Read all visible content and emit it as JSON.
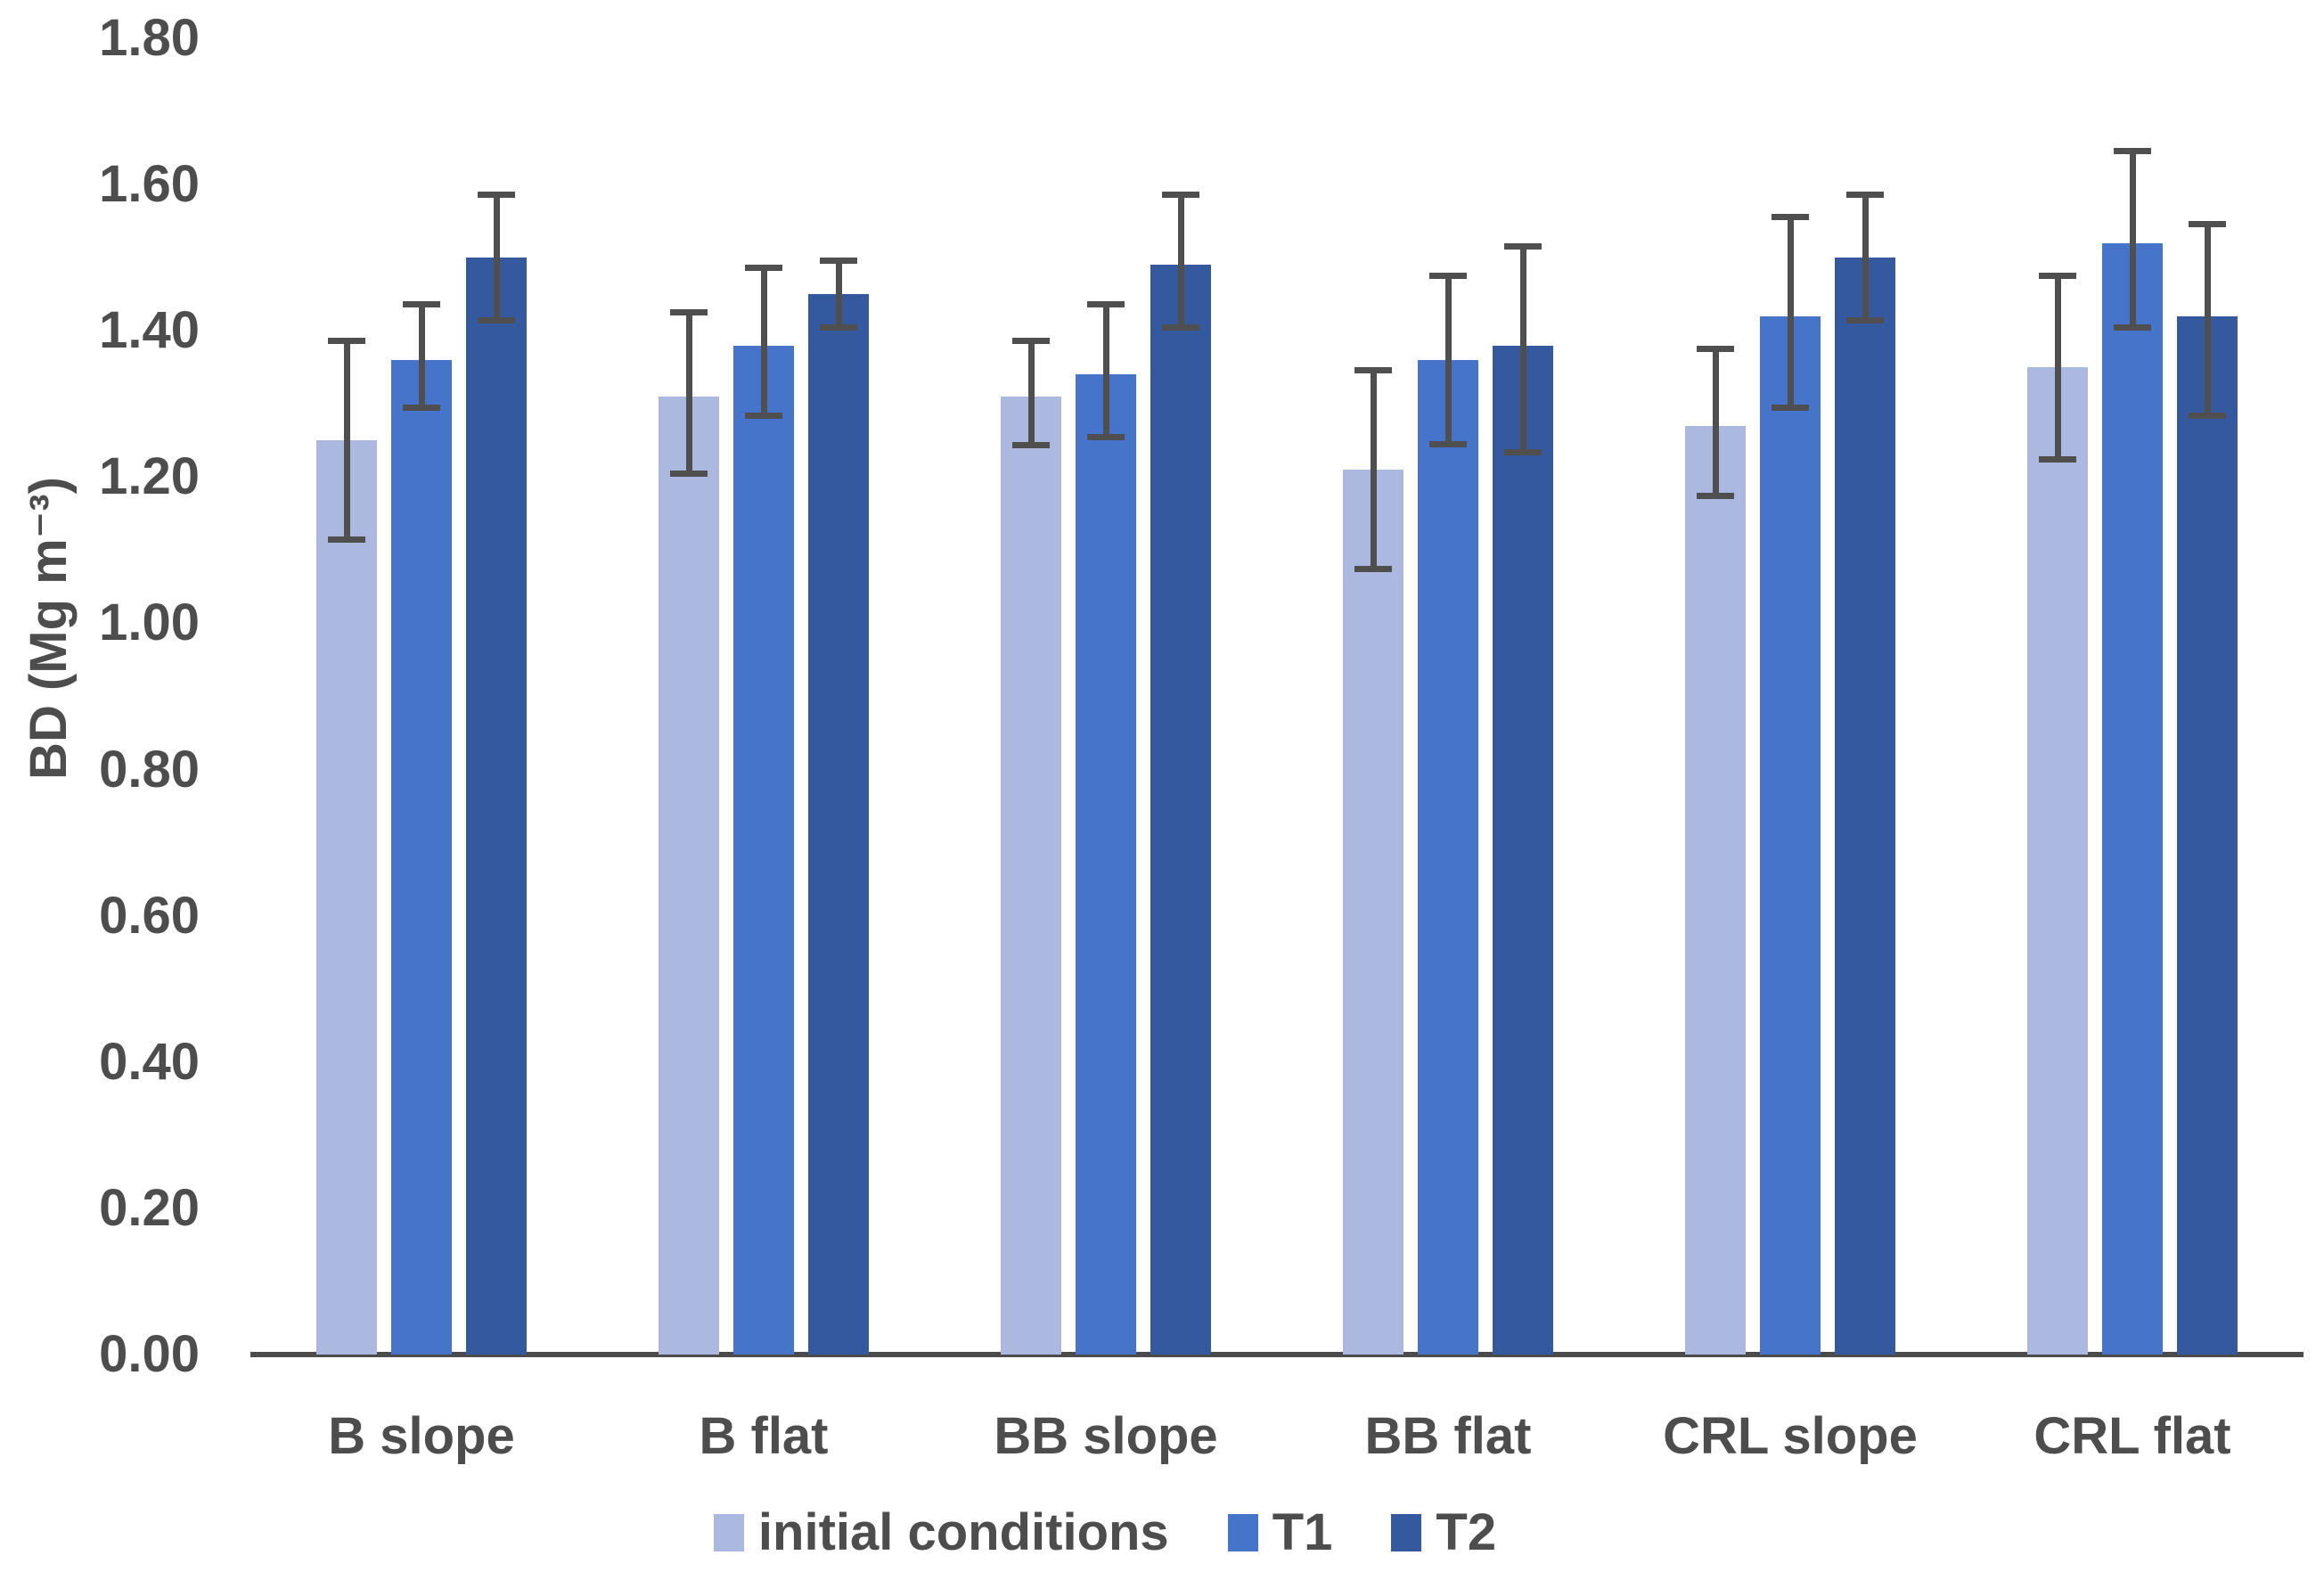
{
  "chart_data": {
    "type": "bar",
    "title": "",
    "xlabel": "",
    "ylabel": "BD (Mg m⁻³)",
    "ylim": [
      0,
      1.8
    ],
    "ytick_step": 0.2,
    "yticks": [
      "0.00",
      "0.20",
      "0.40",
      "0.60",
      "0.80",
      "1.00",
      "1.20",
      "1.40",
      "1.60",
      "1.80"
    ],
    "grid": false,
    "legend_position": "bottom",
    "error_bars": true,
    "categories": [
      "B slope",
      "B flat",
      "BB slope",
      "BB flat",
      "CRL slope",
      "CRL flat"
    ],
    "series": [
      {
        "name": "initial conditions",
        "color": "#abb8df",
        "values": [
          1.25,
          1.31,
          1.31,
          1.21,
          1.27,
          1.35
        ],
        "err_low": [
          1.11,
          1.2,
          1.24,
          1.07,
          1.17,
          1.22
        ],
        "err_high": [
          1.39,
          1.43,
          1.39,
          1.35,
          1.38,
          1.48
        ]
      },
      {
        "name": "T1",
        "color": "#4574ca",
        "values": [
          1.36,
          1.38,
          1.34,
          1.36,
          1.42,
          1.52
        ],
        "err_low": [
          1.29,
          1.28,
          1.25,
          1.24,
          1.29,
          1.4
        ],
        "err_high": [
          1.44,
          1.49,
          1.44,
          1.48,
          1.56,
          1.65
        ]
      },
      {
        "name": "T2",
        "color": "#35599e",
        "values": [
          1.5,
          1.45,
          1.49,
          1.38,
          1.5,
          1.42
        ],
        "err_low": [
          1.41,
          1.4,
          1.4,
          1.23,
          1.41,
          1.28
        ],
        "err_high": [
          1.59,
          1.5,
          1.59,
          1.52,
          1.59,
          1.55
        ]
      }
    ],
    "colors": {
      "text": "#4d4d4d",
      "axis": "#4a4a4a",
      "error_bar": "#4f4f4f"
    }
  }
}
